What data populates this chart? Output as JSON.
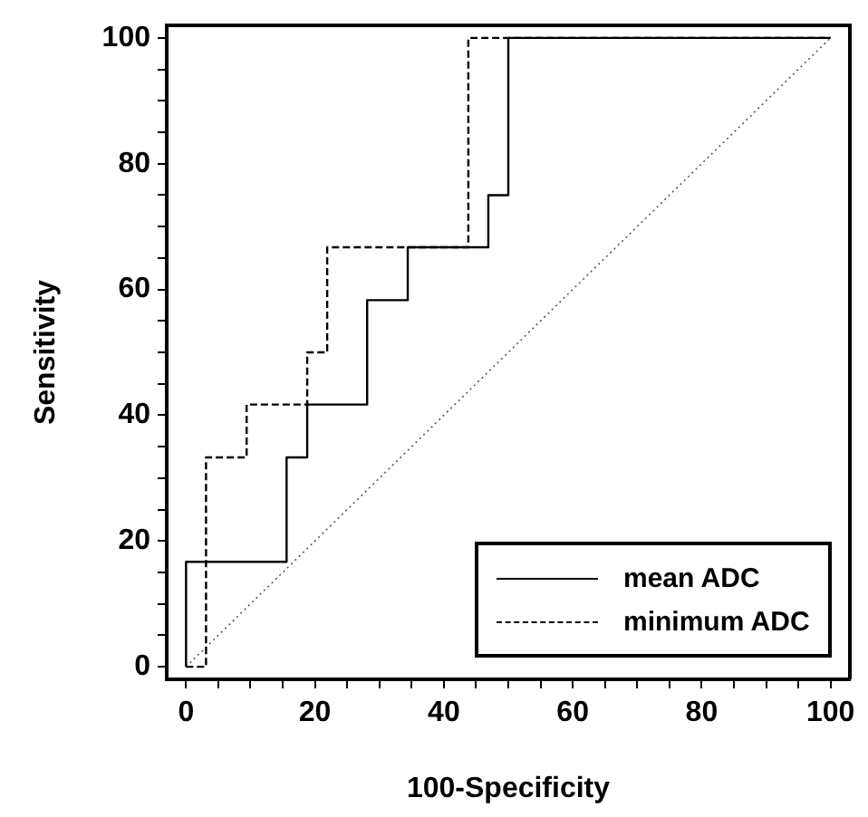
{
  "chart_data": {
    "type": "line",
    "xlabel": "100-Specificity",
    "ylabel": "Sensitivity",
    "xlim": [
      -3,
      103
    ],
    "ylim": [
      -2,
      102
    ],
    "xticks": [
      0,
      {
        "value": 5,
        "label": null
      },
      {
        "value": 10,
        "label": null
      },
      {
        "value": 15,
        "label": null
      },
      20,
      {
        "value": 25,
        "label": null
      },
      {
        "value": 30,
        "label": null
      },
      {
        "value": 35,
        "label": null
      },
      40,
      {
        "value": 45,
        "label": null
      },
      {
        "value": 50,
        "label": null
      },
      {
        "value": 55,
        "label": null
      },
      60,
      {
        "value": 65,
        "label": null
      },
      {
        "value": 70,
        "label": null
      },
      {
        "value": 75,
        "label": null
      },
      80,
      {
        "value": 85,
        "label": null
      },
      {
        "value": 90,
        "label": null
      },
      {
        "value": 95,
        "label": null
      },
      100
    ],
    "yticks": [
      0,
      {
        "value": 5,
        "label": null
      },
      {
        "value": 10,
        "label": null
      },
      {
        "value": 15,
        "label": null
      },
      20,
      {
        "value": 25,
        "label": null
      },
      {
        "value": 30,
        "label": null
      },
      {
        "value": 35,
        "label": null
      },
      40,
      {
        "value": 45,
        "label": null
      },
      {
        "value": 50,
        "label": null
      },
      {
        "value": 55,
        "label": null
      },
      60,
      {
        "value": 65,
        "label": null
      },
      {
        "value": 70,
        "label": null
      },
      {
        "value": 75,
        "label": null
      },
      80,
      {
        "value": 85,
        "label": null
      },
      {
        "value": 90,
        "label": null
      },
      {
        "value": 95,
        "label": null
      },
      100
    ],
    "grid": false,
    "legend": "bottom right",
    "marker": "none",
    "series": [
      {
        "name": "mean ADC",
        "color": "#000000",
        "line_style": "solid",
        "x": [
          0,
          0,
          15.6,
          15.6,
          18.8,
          18.8,
          28.1,
          28.1,
          34.4,
          34.4,
          46.9,
          46.9,
          50,
          50,
          100
        ],
        "values": [
          0,
          16.7,
          16.7,
          33.3,
          33.3,
          41.7,
          41.7,
          58.3,
          58.3,
          66.7,
          66.7,
          75,
          75,
          100,
          100
        ]
      },
      {
        "name": "minimum ADC",
        "color": "#000000",
        "line_style": "dashed",
        "x": [
          0,
          3.1,
          3.1,
          9.4,
          9.4,
          18.8,
          18.8,
          21.9,
          21.9,
          43.8,
          43.8,
          100
        ],
        "values": [
          0,
          0,
          33.3,
          33.3,
          41.7,
          41.7,
          50,
          50,
          66.7,
          66.7,
          100,
          100
        ]
      },
      {
        "color": "#555555",
        "line_style": "dotted",
        "x": [
          0,
          100
        ],
        "values": [
          0,
          100
        ]
      }
    ]
  }
}
